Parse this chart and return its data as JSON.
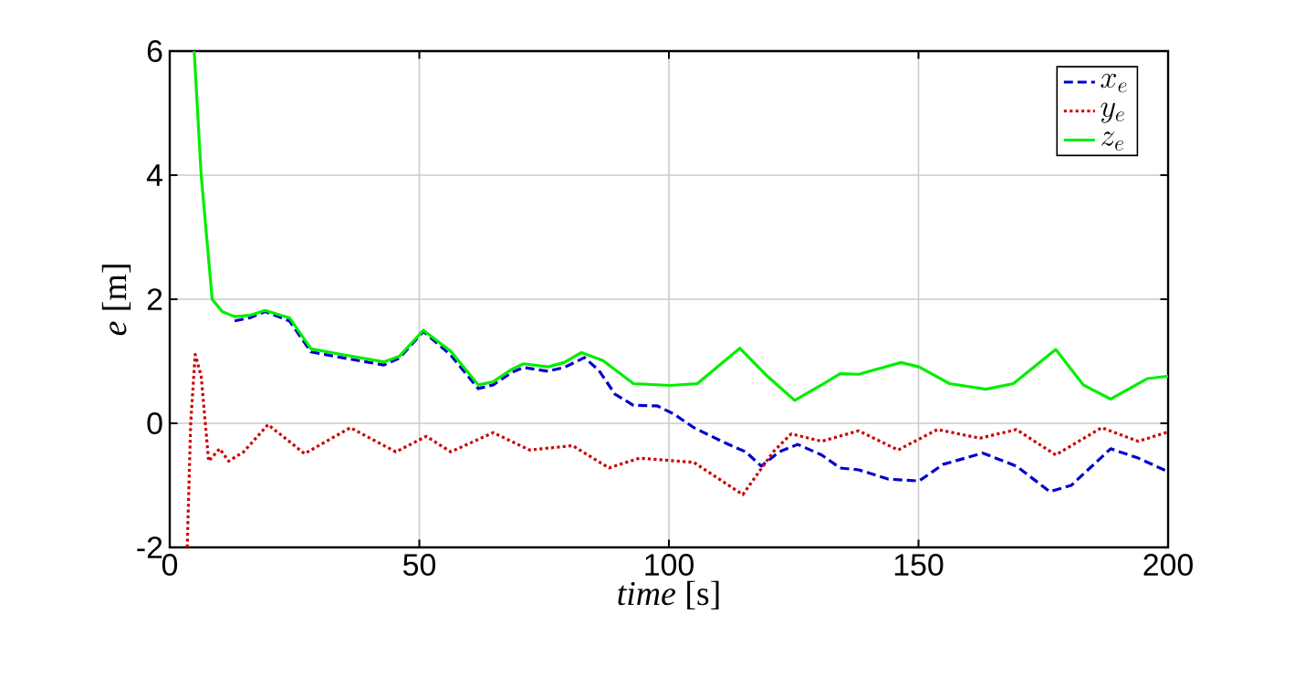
{
  "chart_data": {
    "type": "line",
    "xlabel": "*time* [s]",
    "ylabel": "*e* [m]",
    "xlim": [
      0,
      200
    ],
    "ylim": [
      -2,
      6
    ],
    "xticks": [
      0,
      50,
      100,
      150,
      200
    ],
    "yticks": [
      -2,
      0,
      2,
      4,
      6
    ],
    "grid": true,
    "legend": "top right",
    "marker": "none",
    "series": [
      {
        "name": "x_e",
        "color": "#0000cc",
        "line_style": "dashed",
        "x": [
          13,
          16,
          19.1,
          24,
          28.3,
          34.4,
          42.9,
          46,
          50.8,
          56.3,
          61.8,
          64.8,
          68.5,
          70.9,
          75.8,
          79,
          83.1,
          86,
          89.2,
          92.9,
          97.7,
          101,
          105,
          111.1,
          115.4,
          118.5,
          122.1,
          125.8,
          130.6,
          134.3,
          138,
          144,
          150.1,
          155,
          162.9,
          169.6,
          176.3,
          180.6,
          188.5,
          194,
          200
        ],
        "values": [
          1.65,
          1.7,
          1.8,
          1.65,
          1.15,
          1.06,
          0.94,
          1.05,
          1.48,
          1.1,
          0.56,
          0.62,
          0.82,
          0.9,
          0.84,
          0.9,
          1.06,
          0.85,
          0.47,
          0.29,
          0.28,
          0.15,
          -0.07,
          -0.31,
          -0.46,
          -0.69,
          -0.46,
          -0.34,
          -0.51,
          -0.72,
          -0.75,
          -0.9,
          -0.93,
          -0.66,
          -0.48,
          -0.69,
          -1.1,
          -1.0,
          -0.41,
          -0.56,
          -0.78
        ]
      },
      {
        "name": "y_e",
        "color": "#cc0000",
        "line_style": "dotted",
        "x": [
          3.5,
          4.2,
          5.1,
          6.3,
          7.8,
          10,
          11.8,
          14.8,
          19.7,
          27,
          36.2,
          45.3,
          51.4,
          56.3,
          64.8,
          72.1,
          80.7,
          88,
          94.1,
          105,
          114.8,
          120.9,
          124.5,
          130.6,
          138,
          145.9,
          153.8,
          162.3,
          169.6,
          177.5,
          186.7,
          194,
          200
        ],
        "values": [
          -2,
          0,
          1.11,
          0.76,
          -0.61,
          -0.41,
          -0.61,
          -0.46,
          -0.02,
          -0.49,
          -0.07,
          -0.46,
          -0.21,
          -0.46,
          -0.15,
          -0.43,
          -0.36,
          -0.72,
          -0.56,
          -0.63,
          -1.15,
          -0.46,
          -0.17,
          -0.29,
          -0.12,
          -0.43,
          -0.1,
          -0.24,
          -0.1,
          -0.51,
          -0.07,
          -0.29,
          -0.14
        ]
      },
      {
        "name": "z_e",
        "color": "#00ee00",
        "line_style": "solid",
        "x": [
          4.9,
          6.3,
          8.5,
          10.5,
          13,
          16,
          19.1,
          24,
          28.3,
          34.4,
          42.9,
          46,
          50.8,
          56.3,
          61.8,
          64.8,
          68.5,
          70.9,
          75.8,
          79,
          82.5,
          86.8,
          92.9,
          100.2,
          105.7,
          114.2,
          119.7,
          125.2,
          130.6,
          134.3,
          138,
          146.5,
          150.1,
          156.2,
          163.5,
          169,
          177.5,
          183,
          188.5,
          195.8,
          200
        ],
        "values": [
          6,
          4,
          2,
          1.8,
          1.72,
          1.74,
          1.82,
          1.7,
          1.2,
          1.11,
          0.99,
          1.08,
          1.5,
          1.16,
          0.62,
          0.67,
          0.87,
          0.96,
          0.91,
          0.98,
          1.14,
          1.01,
          0.64,
          0.61,
          0.64,
          1.21,
          0.76,
          0.37,
          0.62,
          0.8,
          0.79,
          0.98,
          0.91,
          0.64,
          0.55,
          0.64,
          1.19,
          0.62,
          0.39,
          0.72,
          0.76
        ]
      }
    ]
  }
}
